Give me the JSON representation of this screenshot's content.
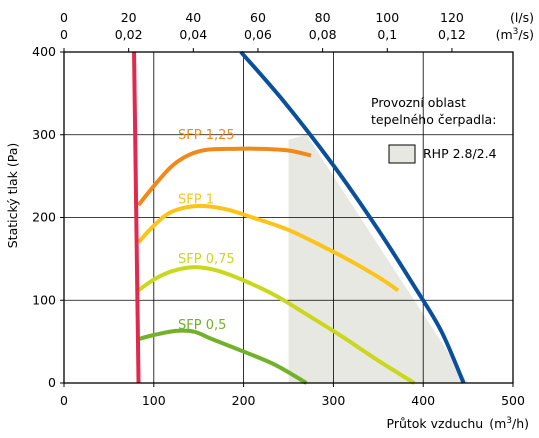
{
  "chart_data": {
    "type": "line",
    "xlabel": "Průtok vzduchu",
    "xunit_base": "(m",
    "xunit_sup": "3",
    "xunit_end": "/h)",
    "ylabel": "Statický tlak (Pa)",
    "xlim": [
      0,
      500
    ],
    "ylim": [
      0,
      400
    ],
    "xticks": [
      0,
      100,
      200,
      300,
      400,
      500
    ],
    "yticks": [
      0,
      100,
      200,
      300,
      400
    ],
    "grid": true,
    "top_axis_ls": {
      "unit": "(l/s)",
      "ticks": [
        {
          "label": "0",
          "m3h": 0
        },
        {
          "label": "20",
          "m3h": 72
        },
        {
          "label": "40",
          "m3h": 144
        },
        {
          "label": "60",
          "m3h": 216
        },
        {
          "label": "80",
          "m3h": 288
        },
        {
          "label": "100",
          "m3h": 360
        },
        {
          "label": "120",
          "m3h": 432
        }
      ]
    },
    "top_axis_m3s": {
      "unit_base": "(m",
      "unit_sup": "3",
      "unit_end": "/s)",
      "ticks": [
        {
          "label": "0",
          "m3h": 0
        },
        {
          "label": "0,02",
          "m3h": 72
        },
        {
          "label": "0,04",
          "m3h": 144
        },
        {
          "label": "0,06",
          "m3h": 216
        },
        {
          "label": "0,08",
          "m3h": 288
        },
        {
          "label": "0,1",
          "m3h": 360
        },
        {
          "label": "0,12",
          "m3h": 432
        }
      ]
    },
    "legend": {
      "title_line1": "Provozní oblast",
      "title_line2": "tepelného čerpadla:",
      "entry": "RHP 2.8/2.4",
      "placement": "top-right"
    },
    "region": {
      "color": "#e8e8e2",
      "points": [
        [
          250,
          0
        ],
        [
          250,
          294
        ],
        [
          270,
          300
        ],
        [
          450,
          0
        ]
      ]
    },
    "series": [
      {
        "name": "SFP 1,25",
        "color": "#ef8a1a",
        "label_at": [
          127,
          300
        ],
        "points": [
          [
            83,
            215
          ],
          [
            100,
            238
          ],
          [
            120,
            262
          ],
          [
            140,
            276
          ],
          [
            160,
            282
          ],
          [
            190,
            283
          ],
          [
            220,
            283
          ],
          [
            250,
            281
          ],
          [
            275,
            275
          ]
        ]
      },
      {
        "name": "SFP 1",
        "color": "#fcc419",
        "label_at": [
          127,
          222
        ],
        "points": [
          [
            83,
            170
          ],
          [
            100,
            190
          ],
          [
            120,
            207
          ],
          [
            150,
            214
          ],
          [
            180,
            210
          ],
          [
            210,
            200
          ],
          [
            250,
            185
          ],
          [
            290,
            164
          ],
          [
            320,
            147
          ],
          [
            350,
            128
          ],
          [
            372,
            112
          ]
        ]
      },
      {
        "name": "SFP 0,75",
        "color": "#c9d81c",
        "label_at": [
          127,
          150
        ],
        "points": [
          [
            83,
            112
          ],
          [
            100,
            125
          ],
          [
            120,
            135
          ],
          [
            145,
            140
          ],
          [
            170,
            136
          ],
          [
            200,
            124
          ],
          [
            235,
            106
          ],
          [
            270,
            83
          ],
          [
            310,
            56
          ],
          [
            350,
            27
          ],
          [
            390,
            0
          ]
        ]
      },
      {
        "name": "SFP 0,5",
        "color": "#72b12a",
        "label_at": [
          127,
          70
        ],
        "points": [
          [
            83,
            53
          ],
          [
            100,
            58
          ],
          [
            125,
            63
          ],
          [
            145,
            62
          ],
          [
            165,
            53
          ],
          [
            200,
            38
          ],
          [
            235,
            22
          ],
          [
            270,
            0
          ]
        ]
      },
      {
        "name": "",
        "color": "#e1284e",
        "points": [
          [
            78,
            400
          ],
          [
            83,
            0
          ]
        ]
      },
      {
        "name": "",
        "color": "#0a4f9c",
        "points": [
          [
            197,
            400
          ],
          [
            245,
            340
          ],
          [
            300,
            263
          ],
          [
            350,
            185
          ],
          [
            390,
            117
          ],
          [
            420,
            63
          ],
          [
            445,
            0
          ]
        ]
      }
    ]
  }
}
